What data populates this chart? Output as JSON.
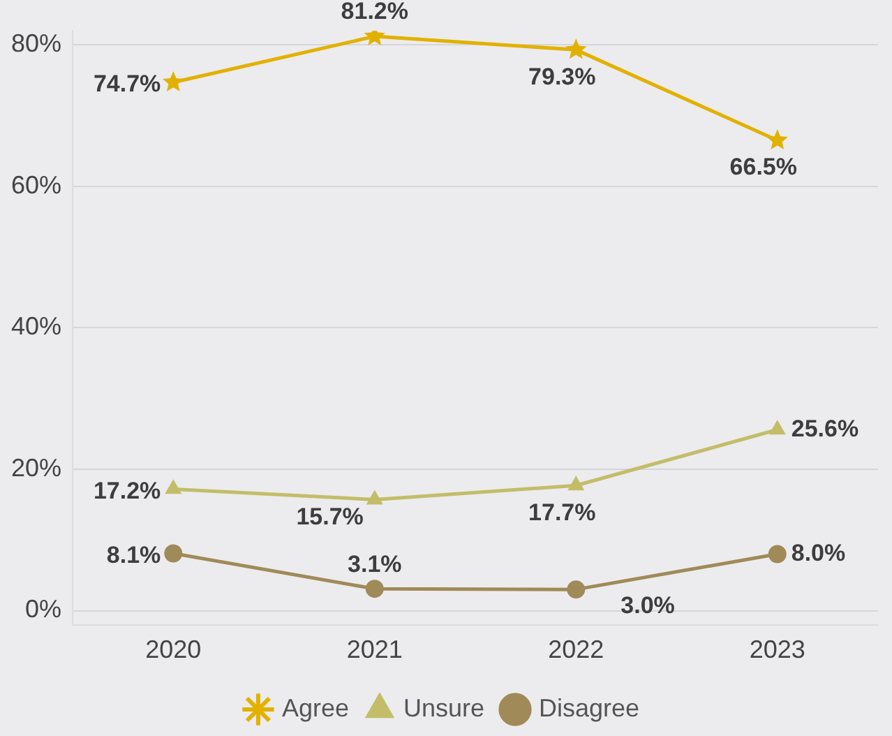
{
  "chart_data": {
    "type": "line",
    "categories": [
      "2020",
      "2021",
      "2022",
      "2023"
    ],
    "series": [
      {
        "name": "Agree",
        "color": "#e2b100",
        "marker": "star",
        "values": [
          74.7,
          81.2,
          79.3,
          66.5
        ],
        "value_labels": [
          "74.7%",
          "81.2%",
          "79.3%",
          "66.5%"
        ]
      },
      {
        "name": "Unsure",
        "color": "#c3bd6a",
        "marker": "triangle",
        "values": [
          17.2,
          15.7,
          17.7,
          25.6
        ],
        "value_labels": [
          "17.2%",
          "15.7%",
          "17.7%",
          "25.6%"
        ]
      },
      {
        "name": "Disagree",
        "color": "#a08a58",
        "marker": "circle",
        "values": [
          8.1,
          3.1,
          3.0,
          8.0
        ],
        "value_labels": [
          "8.1%",
          "3.1%",
          "3.0%",
          "8.0%"
        ]
      }
    ],
    "ylim": [
      -2,
      82
    ],
    "yticks": [
      {
        "value": 0,
        "label": "0%"
      },
      {
        "value": 20,
        "label": "20%"
      },
      {
        "value": 40,
        "label": "40%"
      },
      {
        "value": 60,
        "label": "60%"
      },
      {
        "value": 80,
        "label": "80%"
      }
    ],
    "grid": "y",
    "legend": "bottom"
  }
}
